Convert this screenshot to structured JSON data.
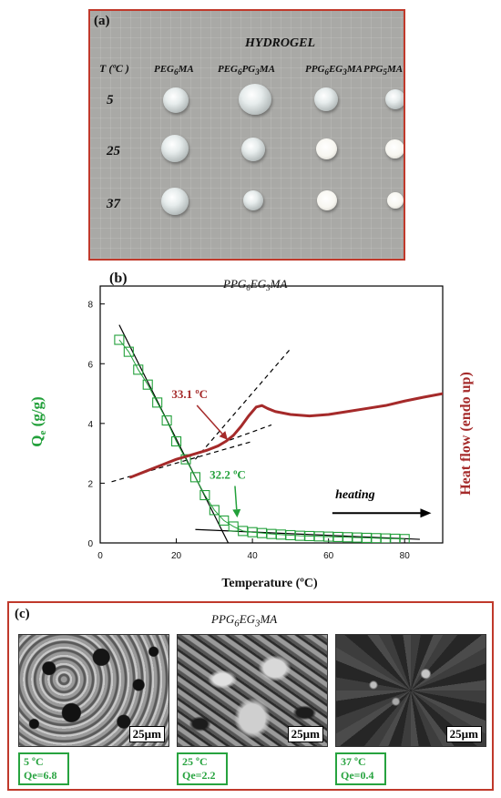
{
  "panel_a": {
    "label": "(a)",
    "title": "HYDROGEL",
    "temp_header": "T (ºC )",
    "columns": [
      "PEG6MA",
      "PEG6PG3MA",
      "PPG6EG3MA",
      "PPG5MA"
    ],
    "rows": [
      "5",
      "25",
      "37"
    ]
  },
  "chart_data": {
    "type": "line",
    "panel_label": "(b)",
    "title": "PPG6EG3MA",
    "xlabel": "Temperature (ºC)",
    "ylabel": "Qe (g/g)",
    "ylabel_right": "Heat flow (endo up)",
    "xlim": [
      0,
      90
    ],
    "ylim": [
      0,
      8.6
    ],
    "xticks": [
      "0",
      "20",
      "40",
      "60",
      "80"
    ],
    "yticks": [
      "0",
      "2",
      "4",
      "6",
      "8"
    ],
    "series": [
      {
        "color": "#22a03a",
        "marker": "square",
        "x": [
          5,
          7.5,
          10,
          12.5,
          15,
          17.5,
          20,
          22.5,
          25,
          27.5,
          30,
          32.5,
          35,
          37.5,
          40,
          42.5,
          45,
          47.5,
          50,
          52.5,
          55,
          57.5,
          60,
          62.5,
          65,
          67.5,
          70,
          72.5,
          75,
          77.5,
          80
        ],
        "y": [
          6.8,
          6.4,
          5.8,
          5.3,
          4.7,
          4.1,
          3.4,
          2.8,
          2.2,
          1.6,
          1.1,
          0.75,
          0.55,
          0.4,
          0.36,
          0.33,
          0.3,
          0.28,
          0.26,
          0.24,
          0.23,
          0.22,
          0.21,
          0.2,
          0.19,
          0.18,
          0.17,
          0.16,
          0.15,
          0.14,
          0.13
        ]
      },
      {
        "color": "#a52a2a",
        "x": [
          8,
          12,
          16,
          20,
          24,
          28,
          31,
          33,
          35,
          37,
          39,
          41,
          42.5,
          44,
          46,
          50,
          55,
          60,
          65,
          70,
          75,
          80,
          85,
          90
        ],
        "y": [
          2.2,
          2.4,
          2.6,
          2.8,
          2.95,
          3.1,
          3.25,
          3.4,
          3.6,
          3.9,
          4.25,
          4.55,
          4.6,
          4.5,
          4.4,
          4.3,
          4.25,
          4.3,
          4.4,
          4.5,
          4.6,
          4.75,
          4.88,
          5.0
        ]
      }
    ],
    "fits": [
      {
        "x": [
          5,
          36
        ],
        "y": [
          7.3,
          -0.6
        ],
        "color": "#000000",
        "dash": "solid"
      },
      {
        "x": [
          25,
          84
        ],
        "y": [
          0.45,
          0.12
        ],
        "color": "#000000",
        "dash": "solid"
      },
      {
        "x": [
          3,
          40
        ],
        "y": [
          2.05,
          3.4
        ],
        "color": "#000000",
        "dash": "dashed"
      },
      {
        "x": [
          25,
          50
        ],
        "y": [
          2.8,
          6.5
        ],
        "color": "#000000",
        "dash": "dashed"
      },
      {
        "x": [
          32,
          45
        ],
        "y": [
          3.35,
          3.95
        ],
        "color": "#000000",
        "dash": "dashed"
      }
    ],
    "annotations": [
      {
        "text": "33.1 ºC",
        "color": "#a52a2a",
        "x": 23.5,
        "y": 4.85,
        "arrow_to": [
          33.5,
          3.45
        ]
      },
      {
        "text": "32.2 ºC",
        "color": "#22a03a",
        "x": 33.5,
        "y": 2.15,
        "arrow_to": [
          36,
          0.85
        ]
      },
      {
        "text": "heating",
        "color": "#000000",
        "x": 67,
        "y": 1.5,
        "arrow_from": [
          61,
          1.0
        ],
        "arrow_to": [
          87,
          1.0
        ]
      }
    ]
  },
  "panel_c": {
    "label": "(c)",
    "title": "PPG6EG3MA",
    "scale": "25µm",
    "images": [
      {
        "temp": "5 ºC",
        "qe": "Qe=6.8"
      },
      {
        "temp": "25 ºC",
        "qe": "Qe=2.2"
      },
      {
        "temp": "37 ºC",
        "qe": "Qe=0.4"
      }
    ]
  }
}
